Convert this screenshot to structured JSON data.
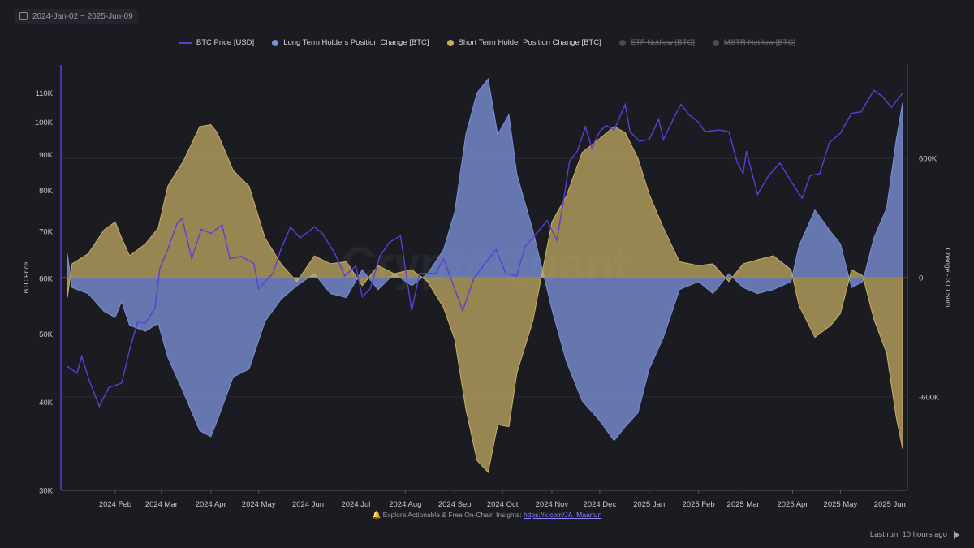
{
  "header": {
    "date_range": "2024-Jan-02 ~ 2025-Jun-09",
    "calendar_icon": "calendar-icon"
  },
  "legend": [
    {
      "label": "BTC Price [USD]",
      "color": "#5b3fd6",
      "marker": "line",
      "active": true
    },
    {
      "label": "Long Term Holders Position Change [BTC]",
      "color": "#7b8fd6",
      "marker": "dot",
      "active": true
    },
    {
      "label": "Short Term Holder Position Change [BTC]",
      "color": "#c9b065",
      "marker": "dot",
      "active": true
    },
    {
      "label": "ETF Netflow [BTC]",
      "color": "#4a4a52",
      "marker": "dot",
      "active": false
    },
    {
      "label": "MSTR Netflow [BTC]",
      "color": "#4a4a52",
      "marker": "dot",
      "active": false
    }
  ],
  "watermark": "CryptoQuant",
  "footer": {
    "note_prefix": "🔔 Explore Actionable & Free On-Chain Insights: ",
    "link_text": "https://x.com/JA_Maartun",
    "last_run": "Last run: 10 hours ago"
  },
  "chart_data": {
    "type": "area",
    "x_ticks": [
      "2024 Feb",
      "2024 Mar",
      "2024 Apr",
      "2024 May",
      "2024 Jun",
      "2024 Jul",
      "2024 Aug",
      "2024 Sep",
      "2024 Oct",
      "2024 Nov",
      "2024 Dec",
      "2025 Jan",
      "2025 Feb",
      "2025 Mar",
      "2025 Apr",
      "2025 May",
      "2025 Jun"
    ],
    "x_tick_dates": [
      "2024-02-01",
      "2024-03-01",
      "2024-04-01",
      "2024-05-01",
      "2024-06-01",
      "2024-07-01",
      "2024-08-01",
      "2024-09-01",
      "2024-10-01",
      "2024-11-01",
      "2024-12-01",
      "2025-01-01",
      "2025-02-01",
      "2025-03-01",
      "2025-04-01",
      "2025-05-01",
      "2025-06-01"
    ],
    "x_range": [
      "2024-01-02",
      "2025-06-09"
    ],
    "left_axis": {
      "label": "BTC Price",
      "scale": "log",
      "range": [
        30000,
        115000
      ],
      "ticks": [
        30000,
        40000,
        50000,
        60000,
        70000,
        80000,
        90000,
        100000,
        110000
      ],
      "tick_labels": [
        "30K",
        "40K",
        "50K",
        "60K",
        "70K",
        "80K",
        "90K",
        "100K",
        "110K"
      ]
    },
    "right_axis": {
      "label": "Change - 30D Sum",
      "scale": "linear",
      "range": [
        -1070000,
        1070000
      ],
      "ticks": [
        -600000,
        0,
        600000
      ],
      "tick_labels": [
        "-600K",
        "0",
        "600K"
      ]
    },
    "grid": true,
    "series": [
      {
        "name": "BTC Price [USD]",
        "axis": "left",
        "style": "line",
        "color": "#5b3fd6",
        "points": [
          [
            "2024-01-02",
            45000
          ],
          [
            "2024-01-08",
            44000
          ],
          [
            "2024-01-11",
            46500
          ],
          [
            "2024-01-16",
            42800
          ],
          [
            "2024-01-22",
            39500
          ],
          [
            "2024-01-28",
            42000
          ],
          [
            "2024-02-05",
            42600
          ],
          [
            "2024-02-10",
            47500
          ],
          [
            "2024-02-15",
            52000
          ],
          [
            "2024-02-20",
            51800
          ],
          [
            "2024-02-26",
            54500
          ],
          [
            "2024-02-29",
            62000
          ],
          [
            "2024-03-05",
            66000
          ],
          [
            "2024-03-11",
            72000
          ],
          [
            "2024-03-14",
            73000
          ],
          [
            "2024-03-20",
            64000
          ],
          [
            "2024-03-26",
            70500
          ],
          [
            "2024-04-01",
            69500
          ],
          [
            "2024-04-08",
            71500
          ],
          [
            "2024-04-13",
            64000
          ],
          [
            "2024-04-20",
            64500
          ],
          [
            "2024-04-28",
            63000
          ],
          [
            "2024-05-01",
            58000
          ],
          [
            "2024-05-10",
            61000
          ],
          [
            "2024-05-15",
            66000
          ],
          [
            "2024-05-21",
            71000
          ],
          [
            "2024-05-27",
            68500
          ],
          [
            "2024-06-05",
            71000
          ],
          [
            "2024-06-10",
            69500
          ],
          [
            "2024-06-18",
            65000
          ],
          [
            "2024-06-24",
            60500
          ],
          [
            "2024-07-01",
            62500
          ],
          [
            "2024-07-05",
            56500
          ],
          [
            "2024-07-10",
            58000
          ],
          [
            "2024-07-16",
            64500
          ],
          [
            "2024-07-22",
            67500
          ],
          [
            "2024-07-29",
            69000
          ],
          [
            "2024-08-05",
            54000
          ],
          [
            "2024-08-10",
            61000
          ],
          [
            "2024-08-20",
            61000
          ],
          [
            "2024-08-25",
            64000
          ],
          [
            "2024-09-01",
            58000
          ],
          [
            "2024-09-06",
            54000
          ],
          [
            "2024-09-13",
            60000
          ],
          [
            "2024-09-20",
            63000
          ],
          [
            "2024-09-27",
            66000
          ],
          [
            "2024-10-03",
            61000
          ],
          [
            "2024-10-10",
            60500
          ],
          [
            "2024-10-15",
            66500
          ],
          [
            "2024-10-21",
            69000
          ],
          [
            "2024-10-29",
            72500
          ],
          [
            "2024-11-04",
            68000
          ],
          [
            "2024-11-08",
            76500
          ],
          [
            "2024-11-12",
            88000
          ],
          [
            "2024-11-17",
            91000
          ],
          [
            "2024-11-22",
            98500
          ],
          [
            "2024-11-26",
            92000
          ],
          [
            "2024-12-01",
            97000
          ],
          [
            "2024-12-05",
            99000
          ],
          [
            "2024-12-10",
            97500
          ],
          [
            "2024-12-17",
            106000
          ],
          [
            "2024-12-20",
            97000
          ],
          [
            "2024-12-26",
            94000
          ],
          [
            "2025-01-01",
            94500
          ],
          [
            "2025-01-07",
            101000
          ],
          [
            "2025-01-10",
            94500
          ],
          [
            "2025-01-17",
            102000
          ],
          [
            "2025-01-21",
            106000
          ],
          [
            "2025-01-26",
            102500
          ],
          [
            "2025-02-01",
            100000
          ],
          [
            "2025-02-05",
            97000
          ],
          [
            "2025-02-14",
            97500
          ],
          [
            "2025-02-20",
            97000
          ],
          [
            "2025-02-25",
            88000
          ],
          [
            "2025-03-01",
            84500
          ],
          [
            "2025-03-03",
            91000
          ],
          [
            "2025-03-10",
            79000
          ],
          [
            "2025-03-17",
            84000
          ],
          [
            "2025-03-24",
            87500
          ],
          [
            "2025-03-31",
            82500
          ],
          [
            "2025-04-07",
            78000
          ],
          [
            "2025-04-12",
            84000
          ],
          [
            "2025-04-18",
            84500
          ],
          [
            "2025-04-24",
            93500
          ],
          [
            "2025-05-01",
            96500
          ],
          [
            "2025-05-08",
            103000
          ],
          [
            "2025-05-14",
            103500
          ],
          [
            "2025-05-22",
            111000
          ],
          [
            "2025-05-27",
            109000
          ],
          [
            "2025-06-02",
            105000
          ],
          [
            "2025-06-09",
            110000
          ]
        ]
      },
      {
        "name": "Long Term Holders Position Change [BTC]",
        "axis": "right",
        "style": "area",
        "color": "#7b8fd6",
        "points": [
          [
            "2024-01-02",
            120000
          ],
          [
            "2024-01-05",
            -50000
          ],
          [
            "2024-01-15",
            -80000
          ],
          [
            "2024-01-25",
            -170000
          ],
          [
            "2024-02-01",
            -200000
          ],
          [
            "2024-02-05",
            -120000
          ],
          [
            "2024-02-10",
            -240000
          ],
          [
            "2024-02-20",
            -270000
          ],
          [
            "2024-02-28",
            -230000
          ],
          [
            "2024-03-05",
            -400000
          ],
          [
            "2024-03-15",
            -580000
          ],
          [
            "2024-03-25",
            -770000
          ],
          [
            "2024-04-01",
            -800000
          ],
          [
            "2024-04-05",
            -720000
          ],
          [
            "2024-04-15",
            -500000
          ],
          [
            "2024-04-25",
            -460000
          ],
          [
            "2024-05-05",
            -220000
          ],
          [
            "2024-05-15",
            -110000
          ],
          [
            "2024-05-25",
            -40000
          ],
          [
            "2024-06-05",
            20000
          ],
          [
            "2024-06-15",
            -80000
          ],
          [
            "2024-06-25",
            -100000
          ],
          [
            "2024-07-05",
            40000
          ],
          [
            "2024-07-15",
            -60000
          ],
          [
            "2024-07-25",
            20000
          ],
          [
            "2024-08-05",
            -40000
          ],
          [
            "2024-08-15",
            20000
          ],
          [
            "2024-08-25",
            140000
          ],
          [
            "2024-09-01",
            330000
          ],
          [
            "2024-09-08",
            720000
          ],
          [
            "2024-09-15",
            930000
          ],
          [
            "2024-09-22",
            1000000
          ],
          [
            "2024-09-28",
            720000
          ],
          [
            "2024-10-05",
            820000
          ],
          [
            "2024-10-10",
            520000
          ],
          [
            "2024-10-20",
            240000
          ],
          [
            "2024-11-01",
            -160000
          ],
          [
            "2024-11-10",
            -420000
          ],
          [
            "2024-11-20",
            -620000
          ],
          [
            "2024-12-01",
            -720000
          ],
          [
            "2024-12-10",
            -820000
          ],
          [
            "2024-12-17",
            -750000
          ],
          [
            "2024-12-25",
            -680000
          ],
          [
            "2025-01-01",
            -460000
          ],
          [
            "2025-01-10",
            -300000
          ],
          [
            "2025-01-20",
            -60000
          ],
          [
            "2025-02-01",
            -20000
          ],
          [
            "2025-02-10",
            -80000
          ],
          [
            "2025-02-20",
            20000
          ],
          [
            "2025-03-01",
            -50000
          ],
          [
            "2025-03-10",
            -80000
          ],
          [
            "2025-03-20",
            -60000
          ],
          [
            "2025-03-31",
            -20000
          ],
          [
            "2025-04-05",
            160000
          ],
          [
            "2025-04-15",
            340000
          ],
          [
            "2025-04-25",
            230000
          ],
          [
            "2025-05-01",
            170000
          ],
          [
            "2025-05-08",
            -50000
          ],
          [
            "2025-05-15",
            -20000
          ],
          [
            "2025-05-22",
            200000
          ],
          [
            "2025-05-30",
            350000
          ],
          [
            "2025-06-05",
            690000
          ],
          [
            "2025-06-09",
            880000
          ]
        ]
      },
      {
        "name": "Short Term Holder Position Change [BTC]",
        "axis": "right",
        "style": "area",
        "color": "#c9b065",
        "points": [
          [
            "2024-01-02",
            -100000
          ],
          [
            "2024-01-05",
            70000
          ],
          [
            "2024-01-15",
            120000
          ],
          [
            "2024-01-25",
            240000
          ],
          [
            "2024-02-01",
            280000
          ],
          [
            "2024-02-05",
            200000
          ],
          [
            "2024-02-10",
            110000
          ],
          [
            "2024-02-20",
            170000
          ],
          [
            "2024-02-28",
            250000
          ],
          [
            "2024-03-05",
            460000
          ],
          [
            "2024-03-15",
            590000
          ],
          [
            "2024-03-25",
            760000
          ],
          [
            "2024-04-01",
            770000
          ],
          [
            "2024-04-05",
            730000
          ],
          [
            "2024-04-15",
            540000
          ],
          [
            "2024-04-25",
            460000
          ],
          [
            "2024-05-05",
            200000
          ],
          [
            "2024-05-15",
            70000
          ],
          [
            "2024-05-25",
            -20000
          ],
          [
            "2024-06-05",
            110000
          ],
          [
            "2024-06-15",
            70000
          ],
          [
            "2024-06-25",
            80000
          ],
          [
            "2024-07-05",
            -40000
          ],
          [
            "2024-07-15",
            60000
          ],
          [
            "2024-07-25",
            20000
          ],
          [
            "2024-08-05",
            40000
          ],
          [
            "2024-08-15",
            -20000
          ],
          [
            "2024-08-25",
            -150000
          ],
          [
            "2024-09-01",
            -310000
          ],
          [
            "2024-09-08",
            -660000
          ],
          [
            "2024-09-15",
            -920000
          ],
          [
            "2024-09-22",
            -980000
          ],
          [
            "2024-09-28",
            -740000
          ],
          [
            "2024-10-05",
            -750000
          ],
          [
            "2024-10-10",
            -480000
          ],
          [
            "2024-10-20",
            -220000
          ],
          [
            "2024-11-01",
            280000
          ],
          [
            "2024-11-10",
            410000
          ],
          [
            "2024-11-20",
            630000
          ],
          [
            "2024-12-01",
            700000
          ],
          [
            "2024-12-10",
            760000
          ],
          [
            "2024-12-17",
            730000
          ],
          [
            "2024-12-25",
            600000
          ],
          [
            "2025-01-01",
            420000
          ],
          [
            "2025-01-10",
            250000
          ],
          [
            "2025-01-20",
            80000
          ],
          [
            "2025-02-01",
            60000
          ],
          [
            "2025-02-10",
            70000
          ],
          [
            "2025-02-20",
            -20000
          ],
          [
            "2025-03-01",
            70000
          ],
          [
            "2025-03-10",
            90000
          ],
          [
            "2025-03-20",
            110000
          ],
          [
            "2025-03-31",
            40000
          ],
          [
            "2025-04-05",
            -140000
          ],
          [
            "2025-04-15",
            -300000
          ],
          [
            "2025-04-25",
            -240000
          ],
          [
            "2025-05-01",
            -180000
          ],
          [
            "2025-05-08",
            40000
          ],
          [
            "2025-05-15",
            10000
          ],
          [
            "2025-05-22",
            -210000
          ],
          [
            "2025-05-30",
            -380000
          ],
          [
            "2025-06-05",
            -700000
          ],
          [
            "2025-06-09",
            -860000
          ]
        ]
      }
    ]
  }
}
